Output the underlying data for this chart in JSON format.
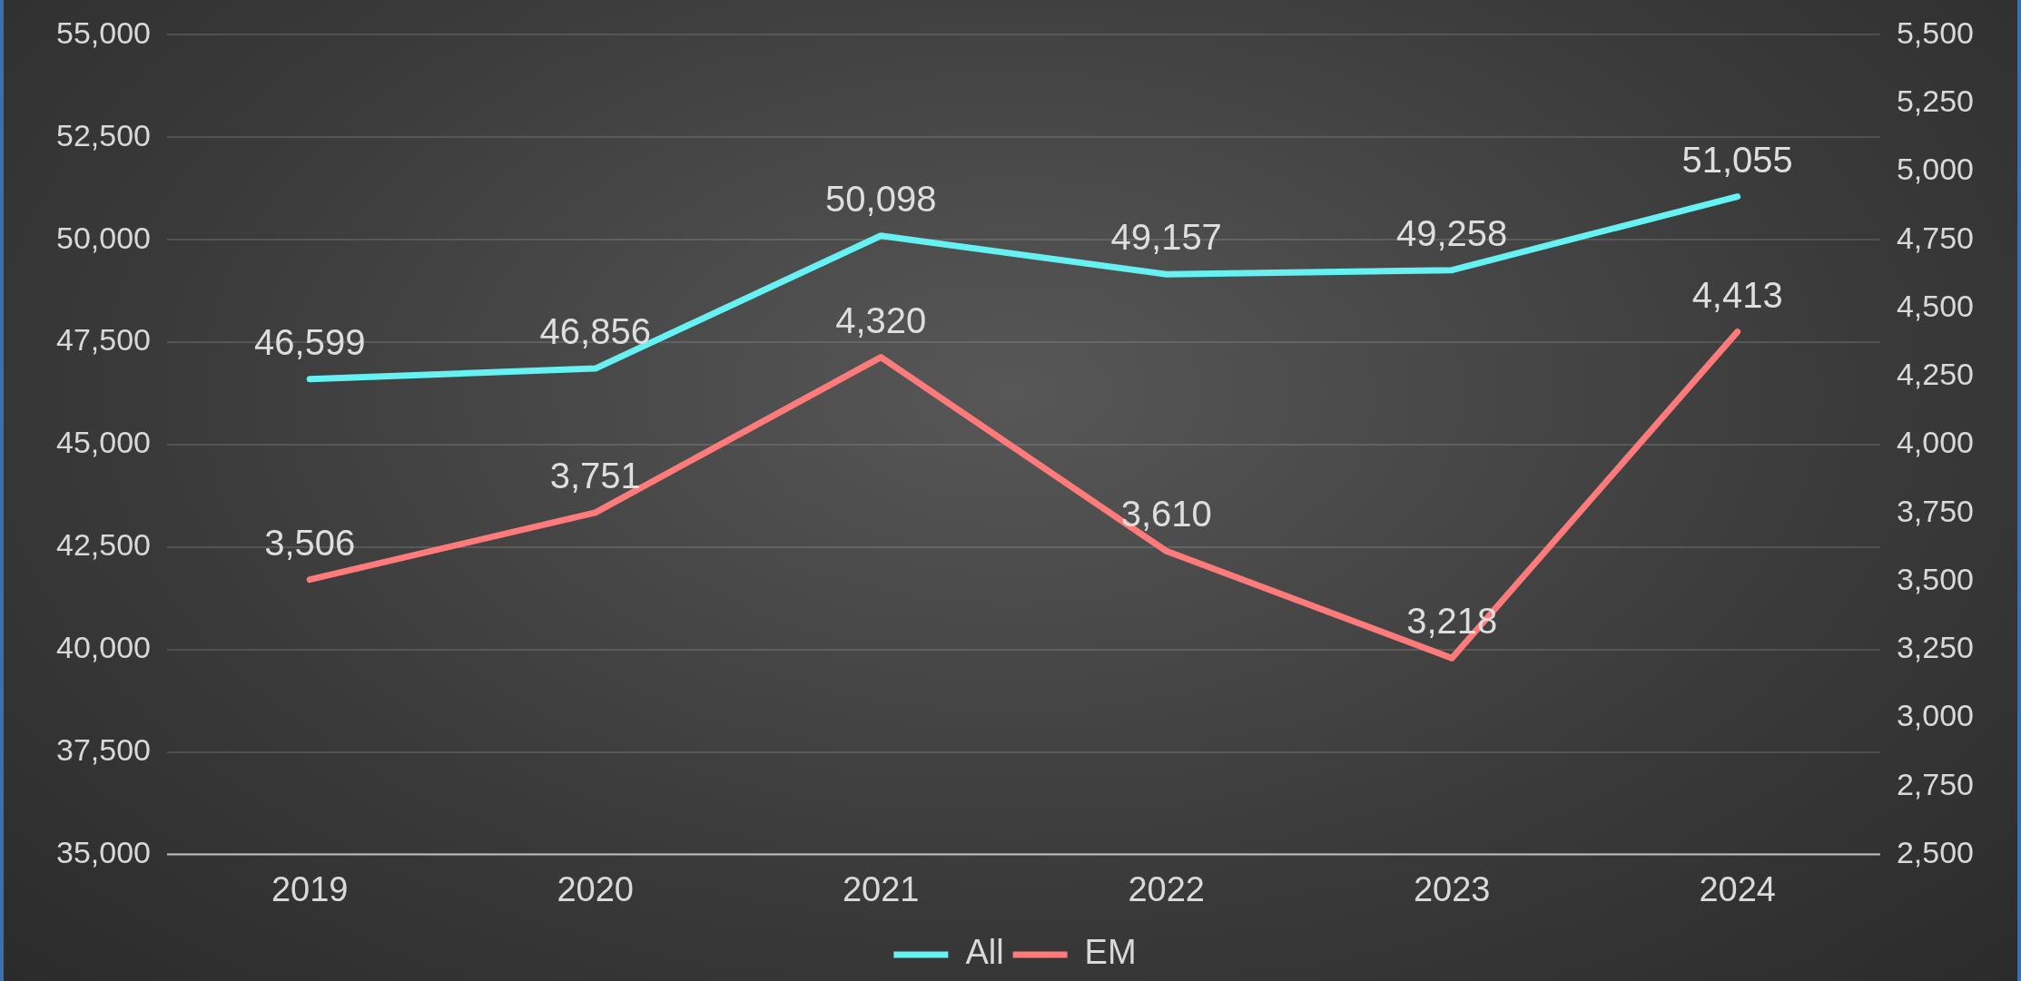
{
  "chart_data": {
    "type": "line",
    "categories": [
      "2019",
      "2020",
      "2021",
      "2022",
      "2023",
      "2024"
    ],
    "series": [
      {
        "name": "All",
        "color": "#66f2f2",
        "values": [
          46599,
          46856,
          50098,
          49157,
          49258,
          51055
        ],
        "value_labels": [
          "46,599",
          "46,856",
          "50,098",
          "49,157",
          "49,258",
          "51,055"
        ]
      },
      {
        "name": "EM",
        "color": "#ff7b7b",
        "values": [
          3506,
          3751,
          4320,
          3610,
          3218,
          4413
        ],
        "value_labels": [
          "3,506",
          "3,751",
          "4,320",
          "3,610",
          "3,218",
          "4,413"
        ],
        "axis": "y2"
      }
    ],
    "ylim": [
      35000,
      55000
    ],
    "yticks": [
      {
        "value": 35000,
        "label": "35,000"
      },
      {
        "value": 37500,
        "label": "37,500"
      },
      {
        "value": 40000,
        "label": "40,000"
      },
      {
        "value": 42500,
        "label": "42,500"
      },
      {
        "value": 45000,
        "label": "45,000"
      },
      {
        "value": 47500,
        "label": "47,500"
      },
      {
        "value": 50000,
        "label": "50,000"
      },
      {
        "value": 52500,
        "label": "52,500"
      },
      {
        "value": 55000,
        "label": "55,000"
      }
    ],
    "y2lim": [
      2500,
      5500
    ],
    "y2ticks": [
      {
        "value": 2500,
        "label": "2,500"
      },
      {
        "value": 2750,
        "label": "2,750"
      },
      {
        "value": 3000,
        "label": "3,000"
      },
      {
        "value": 3250,
        "label": "3,250"
      },
      {
        "value": 3500,
        "label": "3,500"
      },
      {
        "value": 3750,
        "label": "3,750"
      },
      {
        "value": 4000,
        "label": "4,000"
      },
      {
        "value": 4250,
        "label": "4,250"
      },
      {
        "value": 4500,
        "label": "4,500"
      },
      {
        "value": 4750,
        "label": "4,750"
      },
      {
        "value": 5000,
        "label": "5,000"
      },
      {
        "value": 5250,
        "label": "5,250"
      },
      {
        "value": 5500,
        "label": "5,500"
      }
    ],
    "grid": "y",
    "legend": "bottom"
  }
}
